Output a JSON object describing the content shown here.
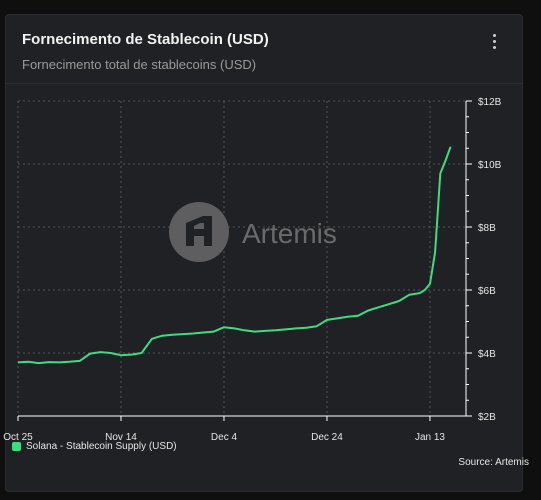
{
  "card": {
    "title": "Fornecimento de Stablecoin (USD)",
    "subtitle": "Fornecimento total de stablecoins (USD)",
    "menu_icon": "more-vertical-icon"
  },
  "watermark": {
    "text": "Artemis",
    "icon": "artemis-logo-icon"
  },
  "source": "Source: Artemis",
  "colors": {
    "line": "#3ddc84",
    "grid": "#555555",
    "axis": "#ffffff",
    "card_bg": "#202124"
  },
  "chart_data": {
    "type": "line",
    "title": "Fornecimento de Stablecoin (USD)",
    "subtitle": "Fornecimento total de stablecoins (USD)",
    "x_ticks": [
      "Oct 25",
      "Nov 14",
      "Dec 4",
      "Dec 24",
      "Jan 13"
    ],
    "y_ticks": [
      "$2B",
      "$4B",
      "$6B",
      "$8B",
      "$10B",
      "$12B"
    ],
    "y_tick_values": [
      2,
      4,
      6,
      8,
      10,
      12
    ],
    "ylim": [
      2,
      12
    ],
    "y_unit": "USD billions",
    "x_range": [
      "2024-10-25",
      "2025-01-17"
    ],
    "grid": true,
    "legend_position": "bottom-left",
    "series": [
      {
        "name": "Solana - Stablecoin Supply (USD)",
        "color": "#3ddc84",
        "points": [
          [
            "2024-10-25",
            3.7
          ],
          [
            "2024-10-27",
            3.72
          ],
          [
            "2024-10-29",
            3.68
          ],
          [
            "2024-10-31",
            3.71
          ],
          [
            "2024-11-02",
            3.7
          ],
          [
            "2024-11-04",
            3.72
          ],
          [
            "2024-11-06",
            3.75
          ],
          [
            "2024-11-08",
            3.98
          ],
          [
            "2024-11-10",
            4.03
          ],
          [
            "2024-11-12",
            4.0
          ],
          [
            "2024-11-14",
            3.93
          ],
          [
            "2024-11-16",
            3.95
          ],
          [
            "2024-11-18",
            4.0
          ],
          [
            "2024-11-20",
            4.45
          ],
          [
            "2024-11-22",
            4.55
          ],
          [
            "2024-11-24",
            4.58
          ],
          [
            "2024-11-26",
            4.6
          ],
          [
            "2024-11-28",
            4.62
          ],
          [
            "2024-11-30",
            4.65
          ],
          [
            "2024-12-02",
            4.68
          ],
          [
            "2024-12-04",
            4.82
          ],
          [
            "2024-12-06",
            4.78
          ],
          [
            "2024-12-08",
            4.72
          ],
          [
            "2024-12-10",
            4.68
          ],
          [
            "2024-12-12",
            4.7
          ],
          [
            "2024-12-14",
            4.72
          ],
          [
            "2024-12-16",
            4.75
          ],
          [
            "2024-12-18",
            4.78
          ],
          [
            "2024-12-20",
            4.8
          ],
          [
            "2024-12-22",
            4.85
          ],
          [
            "2024-12-24",
            5.05
          ],
          [
            "2024-12-26",
            5.1
          ],
          [
            "2024-12-28",
            5.15
          ],
          [
            "2024-12-30",
            5.18
          ],
          [
            "2025-01-01",
            5.35
          ],
          [
            "2025-01-03",
            5.45
          ],
          [
            "2025-01-05",
            5.55
          ],
          [
            "2025-01-07",
            5.65
          ],
          [
            "2025-01-09",
            5.85
          ],
          [
            "2025-01-11",
            5.9
          ],
          [
            "2025-01-12",
            6.0
          ],
          [
            "2025-01-13",
            6.2
          ],
          [
            "2025-01-14",
            7.2
          ],
          [
            "2025-01-15",
            9.7
          ],
          [
            "2025-01-16",
            10.1
          ],
          [
            "2025-01-17",
            10.55
          ]
        ]
      }
    ]
  }
}
